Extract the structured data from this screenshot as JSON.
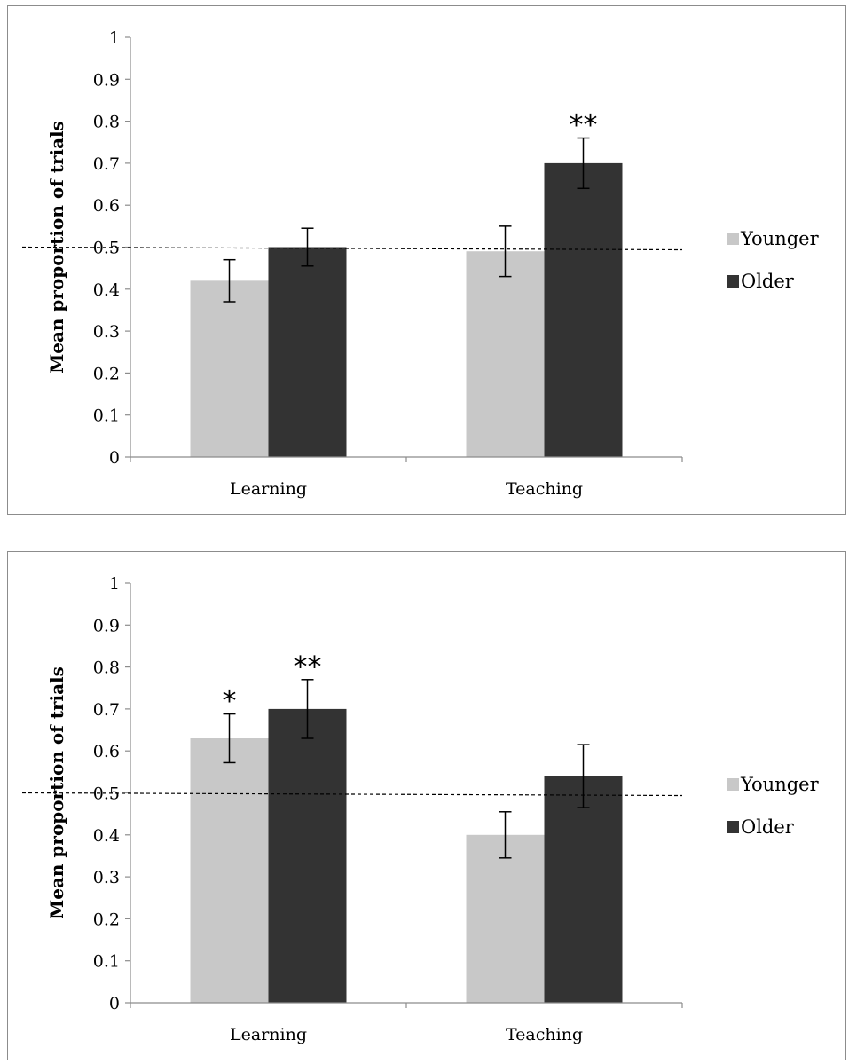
{
  "chart_data": [
    {
      "type": "bar",
      "title": "",
      "xlabel": "",
      "ylabel": "Mean proportion of trials",
      "ylim": [
        0,
        1
      ],
      "yticks": [
        "0",
        "0.1",
        "0.2",
        "0.3",
        "0.4",
        "0.5",
        "0.6",
        "0.7",
        "0.8",
        "0.9",
        "1"
      ],
      "categories": [
        "Learning",
        "Teaching"
      ],
      "series": [
        {
          "name": "Younger",
          "color": "#c8c8c8",
          "values": [
            0.42,
            0.49
          ],
          "error": [
            0.05,
            0.06
          ]
        },
        {
          "name": "Older",
          "color": "#333333",
          "values": [
            0.5,
            0.7
          ],
          "error": [
            0.045,
            0.06
          ]
        }
      ],
      "reference_line": 0.5,
      "annotations": [
        {
          "text": "**",
          "series": 1,
          "category": 1
        }
      ],
      "legend": "right",
      "grid": false
    },
    {
      "type": "bar",
      "title": "",
      "xlabel": "",
      "ylabel": "Mean proportion of trials",
      "ylim": [
        0,
        1
      ],
      "yticks": [
        "0",
        "0.1",
        "0.2",
        "0.3",
        "0.4",
        "0.5",
        "0.6",
        "0.7",
        "0.8",
        "0.9",
        "1"
      ],
      "categories": [
        "Learning",
        "Teaching"
      ],
      "series": [
        {
          "name": "Younger",
          "color": "#c8c8c8",
          "values": [
            0.63,
            0.4
          ],
          "error": [
            0.058,
            0.055
          ]
        },
        {
          "name": "Older",
          "color": "#333333",
          "values": [
            0.7,
            0.54
          ],
          "error": [
            0.07,
            0.075
          ]
        }
      ],
      "reference_line": 0.5,
      "annotations": [
        {
          "text": "*",
          "series": 0,
          "category": 0
        },
        {
          "text": "**",
          "series": 1,
          "category": 0
        }
      ],
      "legend": "right",
      "grid": false
    }
  ]
}
